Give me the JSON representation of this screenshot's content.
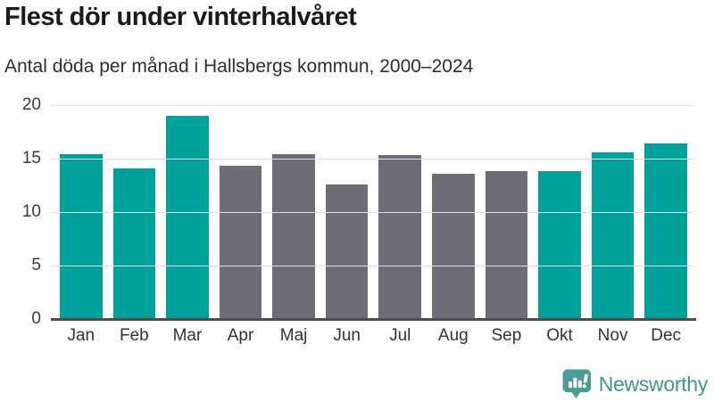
{
  "title": "Flest dör under vinterhalvåret",
  "subtitle": "Antal döda per månad i Hallsbergs kommun, 2000–2024",
  "chart_data": {
    "type": "bar",
    "title": "Flest dör under vinterhalvåret",
    "subtitle": "Antal döda per månad i Hallsbergs kommun, 2000–2024",
    "categories": [
      "Jan",
      "Feb",
      "Mar",
      "Apr",
      "Maj",
      "Jun",
      "Jul",
      "Aug",
      "Sep",
      "Okt",
      "Nov",
      "Dec"
    ],
    "values": [
      15.4,
      14.1,
      19.0,
      14.3,
      15.4,
      12.6,
      15.3,
      13.6,
      13.8,
      13.8,
      15.6,
      16.4
    ],
    "bar_color_keys": [
      "teal",
      "teal",
      "teal",
      "gray",
      "gray",
      "gray",
      "gray",
      "gray",
      "gray",
      "teal",
      "teal",
      "teal"
    ],
    "colors": {
      "teal": "#00a19a",
      "gray": "#6e6d75"
    },
    "xlabel": "",
    "ylabel": "",
    "ylim": [
      0,
      20
    ],
    "yticks": [
      0,
      5,
      10,
      15,
      20
    ],
    "grid": true,
    "legend": "none",
    "axis_text_color": "#3a3a3a",
    "gridline_color": "#e2e2e2",
    "baseline_color": "#4d4d4d"
  },
  "branding": {
    "logo_text": "Newsworthy",
    "logo_text_color": "#3f968f",
    "logo_icon_color": "#4a9d97",
    "logo_icon": "speech-bubble-bar-chart-icon"
  }
}
